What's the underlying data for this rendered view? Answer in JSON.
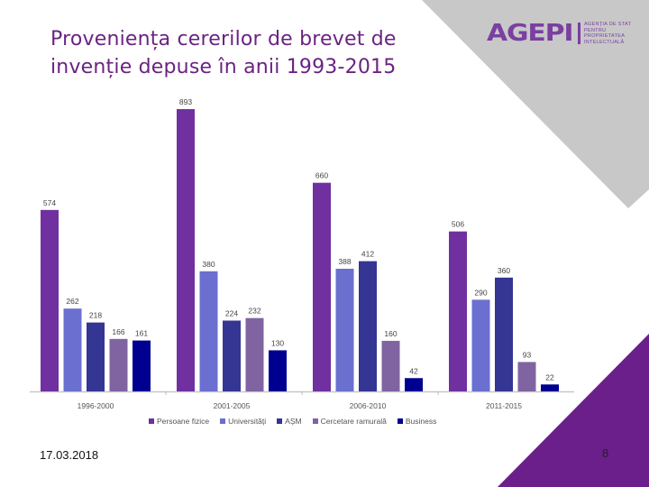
{
  "slide": {
    "title_lines": [
      "Proveniența cererilor de brevet de",
      "invenție depuse în anii 1993-2015"
    ],
    "date": "17.03.2018",
    "page_number": "8",
    "colors": {
      "title": "#6b2380",
      "gray_shape": "#c8c8c8",
      "purple_shape": "#6a1f8a"
    }
  },
  "logo": {
    "mark": "AGEPI",
    "text_lines": [
      "AGENȚIA DE STAT",
      "PENTRU",
      "PROPRIETATEA",
      "INTELECTUALĂ"
    ]
  },
  "chart_data": {
    "type": "bar",
    "title": "Proveniența cererilor de brevet de invenție depuse în anii 1993-2015",
    "xlabel": "",
    "ylabel": "",
    "ylim": [
      0,
      900
    ],
    "grid": false,
    "legend_position": "bottom",
    "categories": [
      "1996-2000",
      "2001-2005",
      "2006-2010",
      "2011-2015"
    ],
    "series": [
      {
        "name": "Persoane fizice",
        "color": "#7030a0",
        "values": [
          574,
          893,
          660,
          506
        ]
      },
      {
        "name": "Universități",
        "color": "#6b6fcf",
        "values": [
          262,
          380,
          388,
          290
        ]
      },
      {
        "name": "AȘM",
        "color": "#353594",
        "values": [
          218,
          224,
          412,
          360
        ]
      },
      {
        "name": "Cercetare ramurală",
        "color": "#8064a2",
        "values": [
          166,
          232,
          160,
          93
        ]
      },
      {
        "name": "Business",
        "color": "#000090",
        "values": [
          161,
          130,
          42,
          22
        ]
      }
    ]
  }
}
